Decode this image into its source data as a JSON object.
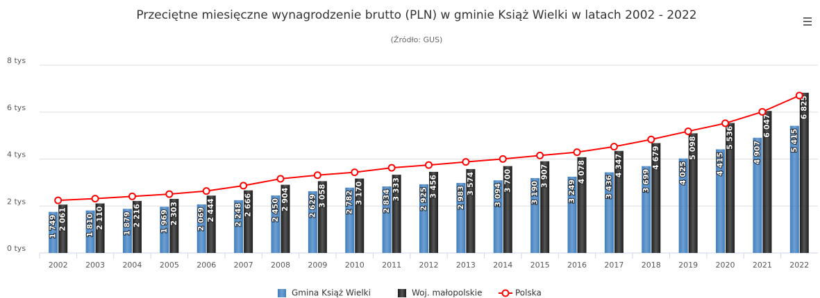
{
  "chart_data": {
    "type": "bar",
    "title": "Przeciętne miesięczne wynagrodzenie brutto (PLN) w gminie Książ Wielki w latach 2002 - 2022",
    "subtitle": "(Źródło: GUS)",
    "categories": [
      "2002",
      "2003",
      "2004",
      "2005",
      "2006",
      "2007",
      "2008",
      "2009",
      "2010",
      "2011",
      "2012",
      "2013",
      "2014",
      "2015",
      "2016",
      "2017",
      "2018",
      "2019",
      "2020",
      "2021",
      "2022"
    ],
    "series": [
      {
        "name": "Gmina Książ Wielki",
        "color": "#3f7fc0",
        "values": [
          1749,
          1810,
          1879,
          1969,
          2069,
          2248,
          2450,
          2629,
          2782,
          2834,
          2925,
          2983,
          3094,
          3190,
          3249,
          3436,
          3699,
          4025,
          4415,
          4907,
          5415
        ],
        "value_labels": [
          "1 749",
          "1 810",
          "1 879",
          "1 969",
          "2 069",
          "2 248",
          "2 450",
          "2 629",
          "2 782",
          "2 834",
          "2 925",
          "2 983",
          "3 094",
          "3 190",
          "3 249",
          "3 436",
          "3 699",
          "4 025",
          "4 415",
          "4 907",
          "5 415"
        ]
      },
      {
        "name": "Woj. małopolskie",
        "color": "#1c1c1c",
        "values": [
          2061,
          2110,
          2216,
          2303,
          2444,
          2666,
          2904,
          3058,
          3170,
          3333,
          3456,
          3574,
          3700,
          3907,
          4078,
          4347,
          4679,
          5098,
          5536,
          6047,
          6825
        ],
        "value_labels": [
          "2 061",
          "2 110",
          "2 216",
          "2 303",
          "2 444",
          "2 666",
          "2 904",
          "3 058",
          "3 170",
          "3 333",
          "3 456",
          "3 574",
          "3 700",
          "3 907",
          "4 078",
          "4 347",
          "4 679",
          "5 098",
          "5 536",
          "6 047",
          "6 825"
        ]
      },
      {
        "name": "Polska",
        "color": "#ff0000",
        "type": "line",
        "values": [
          2239,
          2315,
          2409,
          2507,
          2637,
          2866,
          3159,
          3315,
          3435,
          3626,
          3744,
          3877,
          4004,
          4150,
          4291,
          4528,
          4834,
          5182,
          5523,
          6012,
          6705
        ]
      }
    ],
    "ylim": [
      0,
      8000
    ],
    "yticks": [
      {
        "value": 0,
        "label": "0 tys"
      },
      {
        "value": 2000,
        "label": "2 tys"
      },
      {
        "value": 4000,
        "label": "4 tys"
      },
      {
        "value": 6000,
        "label": "6 tys"
      },
      {
        "value": 8000,
        "label": "8 tys"
      }
    ],
    "grid": true
  }
}
